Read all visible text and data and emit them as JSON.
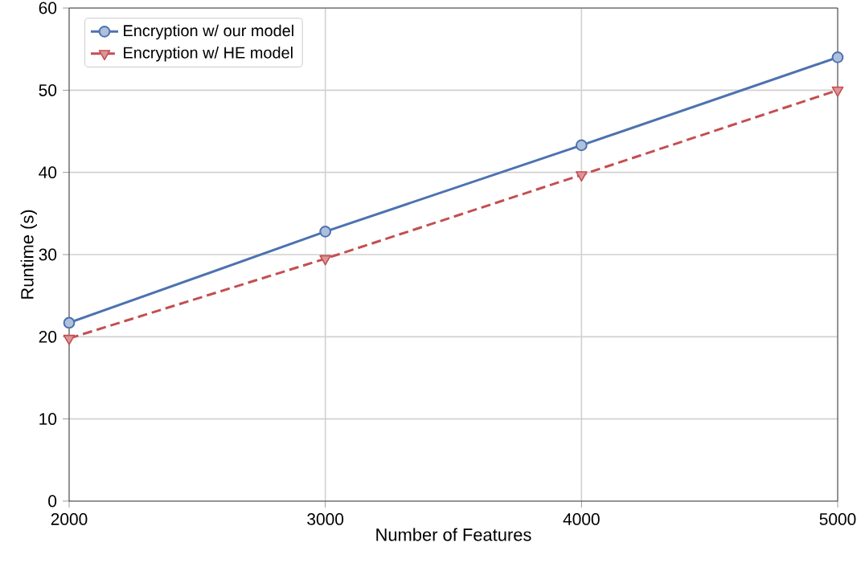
{
  "chart_data": {
    "type": "line",
    "xlabel": "Number of Features",
    "ylabel": "Runtime (s)",
    "x": [
      2000,
      3000,
      4000,
      5000
    ],
    "series": [
      {
        "name": "Encryption w/ our model",
        "color": "#4c72b0",
        "values": [
          21.7,
          32.8,
          43.3,
          54.0
        ],
        "marker": "circle",
        "line_style": "solid"
      },
      {
        "name": "Encryption w/ HE model",
        "color": "#c44e52",
        "values": [
          19.8,
          29.5,
          39.7,
          50.0
        ],
        "marker": "triangle",
        "line_style": "dashed"
      }
    ],
    "xlim": [
      2000,
      5000
    ],
    "xticks": [
      2000,
      3000,
      4000,
      5000
    ],
    "ylim": [
      0,
      60
    ],
    "yticks": [
      0,
      10,
      20,
      30,
      40,
      50,
      60
    ],
    "grid": true,
    "legend": "top left"
  }
}
